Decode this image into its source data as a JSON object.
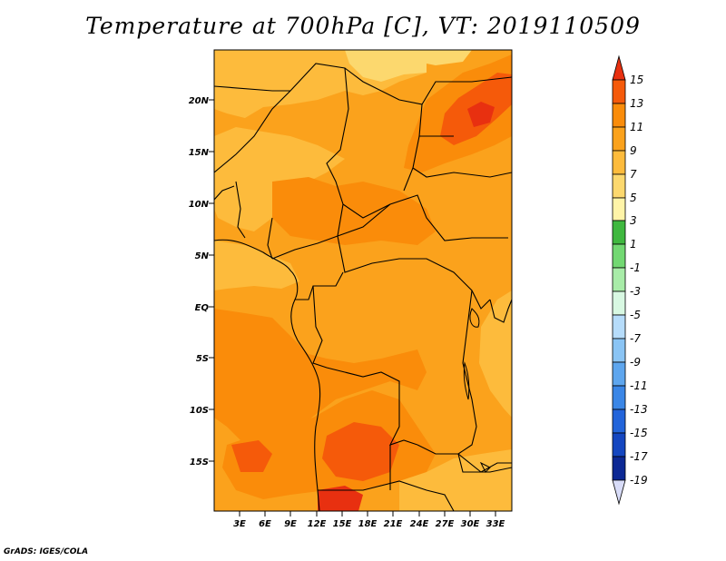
{
  "title": "Temperature at 700hPa [C], VT: 2019110509",
  "credit": "GrADS: IGES/COLA",
  "map": {
    "lat_labels": [
      "20N",
      "15N",
      "10N",
      "5N",
      "EQ",
      "5S",
      "10S",
      "15S"
    ],
    "lon_labels": [
      "3E",
      "6E",
      "9E",
      "12E",
      "15E",
      "18E",
      "21E",
      "24E",
      "27E",
      "30E",
      "33E"
    ]
  },
  "colorbar": {
    "labels": [
      "15",
      "13",
      "11",
      "9",
      "7",
      "5",
      "3",
      "1",
      "-1",
      "-3",
      "-5",
      "-7",
      "-9",
      "-11",
      "-13",
      "-15",
      "-17",
      "-19"
    ],
    "colors": {
      "gt15": "#e83010",
      "c13": "#f55a0a",
      "c11": "#fa8c0a",
      "c9": "#fba21c",
      "c7": "#fdbb3c",
      "c5": "#fcd86e",
      "c3": "#fff4a8",
      "c1": "#3fb83f",
      "cm1": "#72d872",
      "cm3": "#a8eca8",
      "cm5": "#d8f8e2",
      "cm7": "#b6dcfa",
      "cm9": "#8ac4f4",
      "cm11": "#5ea6ee",
      "cm13": "#3a86e6",
      "cm15": "#2264da",
      "cm17": "#1446c0",
      "cm19": "#0c2894",
      "lt19": "#080a60"
    }
  }
}
